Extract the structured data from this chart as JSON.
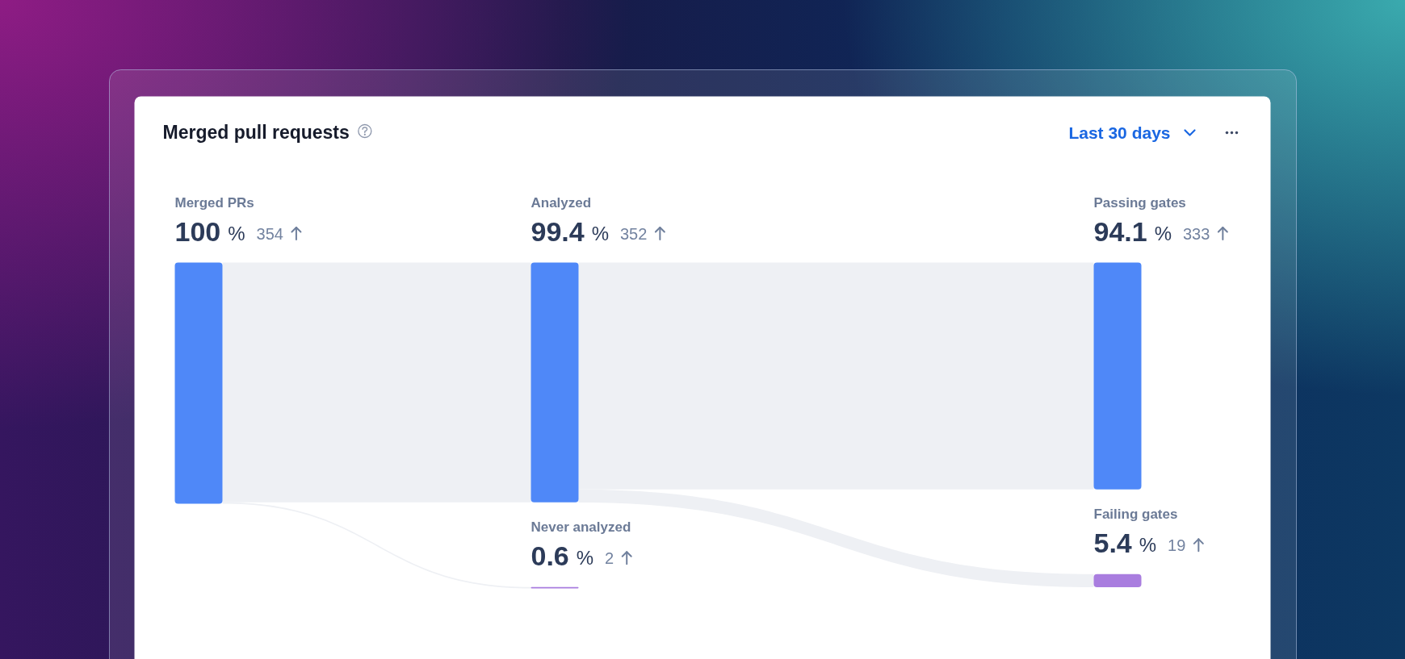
{
  "chart_data": {
    "type": "other",
    "title": "Merged pull requests",
    "annotations": [
      "Last 30 days"
    ],
    "categories": [
      "Merged PRs",
      "Analyzed",
      "Passing gates",
      "Never analyzed",
      "Failing gates"
    ],
    "series": [
      {
        "values": [
          100,
          99.4,
          94.1,
          0.6,
          5.4
        ],
        "value_labels": [
          "100 %",
          "99.4 %",
          "94.1 %",
          "0.6 %",
          "5.4 %"
        ],
        "colors": [
          "#4f88f8",
          "#4f88f8",
          "#4f88f8",
          "#a97ddf",
          "#a97ddf"
        ]
      },
      {
        "values": [
          354,
          352,
          333,
          2,
          19
        ]
      }
    ],
    "data_labels": true
  }
}
